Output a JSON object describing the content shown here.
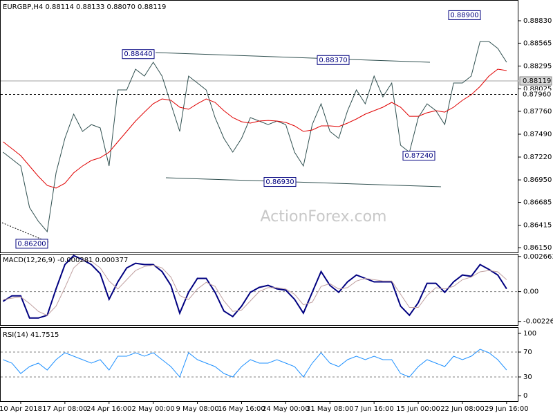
{
  "chart_data": [
    {
      "type": "line",
      "title": "EURGBP,H4  0.88114 0.88133 0.88070 0.88119",
      "series": [
        {
          "color": "#2f4f4f",
          "values": [
            0.87278,
            0.87196,
            0.87114,
            0.86624,
            0.86461,
            0.86338,
            0.87033,
            0.87441,
            0.87727,
            0.87523,
            0.87604,
            0.87564,
            0.87114,
            0.88013,
            0.88013,
            0.88258,
            0.88176,
            0.8834,
            0.88176,
            0.87849,
            0.87523,
            0.88176,
            0.88095,
            0.88013,
            0.87686,
            0.87441,
            0.87278,
            0.87441,
            0.87686,
            0.87645,
            0.87604,
            0.87645,
            0.87604,
            0.87278,
            0.87114,
            0.87604,
            0.87849,
            0.87523,
            0.87441,
            0.87768,
            0.88013,
            0.87849,
            0.88176,
            0.87931,
            0.88095,
            0.87359,
            0.87278,
            0.87686,
            0.87849,
            0.87768,
            0.87604,
            0.88095,
            0.88095,
            0.88176,
            0.88585,
            0.88585,
            0.88503,
            0.8834
          ]
        },
        {
          "color": "#e00000",
          "values": [
            0.874,
            0.87319,
            0.87237,
            0.87114,
            0.86992,
            0.86885,
            0.86853,
            0.8691,
            0.87033,
            0.87114,
            0.8718,
            0.87212,
            0.87278,
            0.874,
            0.87523,
            0.87645,
            0.87751,
            0.8785,
            0.87907,
            0.8789,
            0.87809,
            0.87784,
            0.8785,
            0.87907,
            0.87866,
            0.87768,
            0.87686,
            0.87637,
            0.87621,
            0.87645,
            0.87653,
            0.87645,
            0.87629,
            0.87588,
            0.87523,
            0.87539,
            0.87588,
            0.87588,
            0.8758,
            0.87621,
            0.8767,
            0.87727,
            0.87768,
            0.87809,
            0.87866,
            0.87809,
            0.87702,
            0.87702,
            0.87743,
            0.87768,
            0.87751,
            0.87809,
            0.8789,
            0.87956,
            0.88054,
            0.88176,
            0.88258,
            0.88242
          ]
        }
      ],
      "ylim": [
        0.86093,
        0.89075
      ],
      "yticks": [
        {
          "value": 0.8883,
          "label": "0.88830"
        },
        {
          "value": 0.88565,
          "label": "0.88565"
        },
        {
          "value": 0.88295,
          "label": "0.88295"
        },
        {
          "value": 0.88025,
          "label": "0.88025"
        },
        {
          "value": 0.8776,
          "label": "0.87760"
        },
        {
          "value": 0.8749,
          "label": "0.87490"
        },
        {
          "value": 0.8722,
          "label": "0.87220"
        },
        {
          "value": 0.8695,
          "label": "0.86950"
        },
        {
          "value": 0.86685,
          "label": "0.86685"
        },
        {
          "value": 0.86415,
          "label": "0.86415"
        },
        {
          "value": 0.8615,
          "label": "0.86150"
        }
      ],
      "price_lines": [
        {
          "value": 0.88119,
          "label": "0.88119"
        },
        {
          "value": 0.8796,
          "label": "0.87960"
        }
      ],
      "annotations": [
        {
          "value": 0.8844,
          "label": "0.88440"
        },
        {
          "value": 0.8837,
          "label": "0.88370"
        },
        {
          "value": 0.889,
          "label": "0.88900"
        },
        {
          "value": 0.8693,
          "label": "0.86930"
        },
        {
          "value": 0.8724,
          "label": "0.87240"
        },
        {
          "value": 0.862,
          "label": "0.86200"
        }
      ],
      "watermark": "ActionForex.com"
    },
    {
      "type": "line",
      "title": "MACD(12,26,9) -0.000281 0.000377",
      "series": [
        {
          "color": "#000080",
          "values": [
            -0.00074,
            -0.00032,
            -0.00032,
            -0.002,
            -0.002,
            -0.00179,
            0.00021,
            0.00205,
            0.00273,
            0.00242,
            0.00205,
            0.00136,
            -0.00058,
            0.00074,
            0.00179,
            0.00215,
            0.00205,
            0.00205,
            0.00152,
            0.00047,
            -0.00163,
            -5e-05,
            0.001,
            0.001,
            -5e-05,
            -0.00147,
            -0.00189,
            -0.0011,
            -5e-05,
            0.00032,
            0.00047,
            0.00021,
            0.00011,
            -0.00058,
            -0.00163,
            -5e-05,
            0.00152,
            0.00047,
            -5e-05,
            0.00074,
            0.00126,
            0.001,
            0.00074,
            0.00074,
            0.00074,
            -0.0011,
            -0.00179,
            -0.00084,
            0.00063,
            0.00063,
            -5e-05,
            0.00074,
            0.00126,
            0.00116,
            0.00205,
            0.00168,
            0.00126,
            0.00021
          ]
        },
        {
          "color": "#c0a0a0",
          "values": [
            -0.0006,
            -0.0005,
            -0.0004,
            -0.0009,
            -0.0015,
            -0.0018,
            -0.0011,
            0.0003,
            0.0018,
            0.0024,
            0.0023,
            0.0018,
            0.0008,
            0.0002,
            0.0009,
            0.0016,
            0.0019,
            0.002,
            0.0018,
            0.0011,
            -0.0003,
            -0.0006,
            0.0002,
            0.0007,
            0.0004,
            -0.0007,
            -0.0015,
            -0.0014,
            -0.0007,
            0,
            0.0003,
            0.0003,
            0.0002,
            -0.0002,
            -0.001,
            -0.0008,
            0.0004,
            0.0006,
            0.0002,
            0.0003,
            0.0008,
            0.001,
            0.0009,
            0.0008,
            0.0008,
            -0.0002,
            -0.0012,
            -0.0012,
            -0.0003,
            0.0003,
            0.0002,
            0.0004,
            0.0009,
            0.0011,
            0.0015,
            0.0016,
            0.0015,
            0.0009
          ]
        }
      ],
      "ylim": [
        -0.002536,
        0.002914
      ],
      "yticks": [
        0.002663,
        {
          "value": 0,
          "label": "0.00"
        },
        -0.00226
      ],
      "levels": [
        0
      ]
    },
    {
      "type": "line",
      "title": "RSI(14) 41.7515",
      "categories": [
        null,
        null,
        "10 Apr 2018",
        null,
        null,
        null,
        null,
        "17 Apr 08:00",
        null,
        null,
        null,
        null,
        "24 Apr 16:00",
        null,
        null,
        null,
        null,
        "2 May 00:00",
        null,
        null,
        null,
        null,
        "9 May 08:00",
        null,
        null,
        null,
        null,
        "16 May 16:00",
        null,
        null,
        null,
        null,
        "24 May 00:00",
        null,
        null,
        null,
        null,
        "31 May 08:00",
        null,
        null,
        null,
        null,
        "7 Jun 16:00",
        null,
        null,
        null,
        null,
        "15 Jun 00:00",
        null,
        null,
        null,
        null,
        "22 Jun 08:00",
        null,
        null,
        null,
        null,
        "29 Jun 16:00"
      ],
      "series": [
        {
          "color": "#1e90ff",
          "values": [
            57.8,
            52.2,
            35.6,
            46.7,
            52.2,
            41.1,
            57.8,
            68.9,
            63.3,
            57.8,
            52.2,
            57.8,
            41.1,
            63.3,
            63.3,
            68.9,
            63.3,
            68.9,
            57.8,
            46.7,
            30,
            68.9,
            57.8,
            52.2,
            46.7,
            35.6,
            30,
            46.7,
            57.8,
            52.2,
            52.2,
            57.8,
            52.2,
            46.7,
            30,
            52.2,
            68.9,
            52.2,
            46.7,
            57.8,
            63.3,
            57.8,
            63.3,
            57.8,
            57.8,
            35.6,
            30,
            46.7,
            57.8,
            52.2,
            46.7,
            63.3,
            57.8,
            63.3,
            74.4,
            68.9,
            57.8,
            41.1
          ]
        }
      ],
      "ylim": [
        -8.9,
        108.9
      ],
      "yticks": [
        100,
        70,
        30,
        0
      ],
      "levels": [
        70,
        30
      ]
    }
  ]
}
